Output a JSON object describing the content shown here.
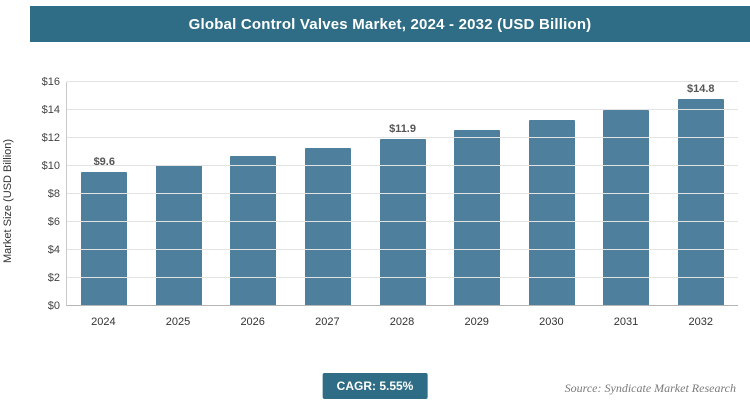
{
  "header": {
    "title": "Global Control Valves Market, 2024 - 2032 (USD Billion)"
  },
  "chart_data": {
    "type": "bar",
    "categories": [
      "2024",
      "2025",
      "2026",
      "2027",
      "2028",
      "2029",
      "2030",
      "2031",
      "2032"
    ],
    "values": [
      9.6,
      10.1,
      10.7,
      11.3,
      11.9,
      12.6,
      13.3,
      14.0,
      14.8
    ],
    "value_labels": [
      "$9.6",
      null,
      null,
      null,
      "$11.9",
      null,
      null,
      null,
      "$14.8"
    ],
    "title": "Global Control Valves Market, 2024 - 2032 (USD Billion)",
    "xlabel": "",
    "ylabel": "Market Size (USD Billion)",
    "ylim": [
      0,
      16
    ],
    "ytick_step": 2,
    "ytick_prefix": "$",
    "grid": true,
    "legend": "none",
    "bar_color": "#4e7f9c"
  },
  "footer": {
    "cagr_label": "CAGR: 5.55%",
    "source": "Source: Syndicate Market Research"
  },
  "colors": {
    "accent": "#2e6d85",
    "bar": "#4e7f9c",
    "gridline": "#e3e3e3",
    "value_label": "#555555"
  }
}
